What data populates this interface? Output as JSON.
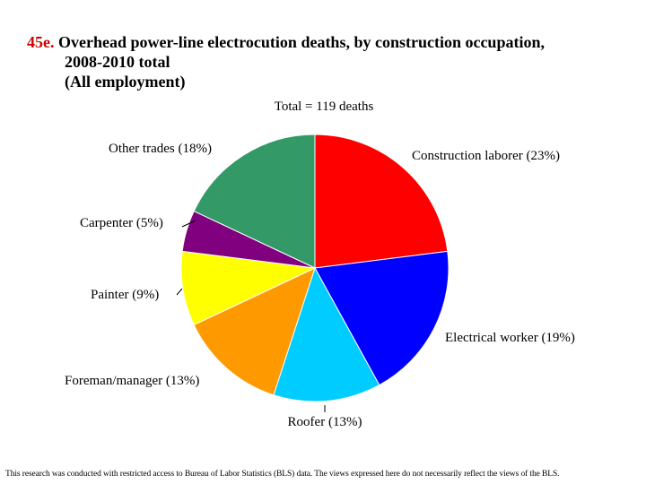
{
  "title": {
    "number": "45e.",
    "line1": "Overhead power-line electrocution deaths, by construction occupation,",
    "line2": "2008-2010 total",
    "line3": "(All employment)"
  },
  "chart_data": {
    "type": "pie",
    "subtitle": "Total = 119 deaths",
    "slices": [
      {
        "label": "Construction laborer (23%)",
        "value": 23,
        "color": "#ff0000"
      },
      {
        "label": "Electrical worker (19%)",
        "value": 19,
        "color": "#0000ff"
      },
      {
        "label": "Roofer (13%)",
        "value": 13,
        "color": "#00ccff"
      },
      {
        "label": "Foreman/manager (13%)",
        "value": 13,
        "color": "#ff9900"
      },
      {
        "label": "Painter (9%)",
        "value": 9,
        "color": "#ffff00"
      },
      {
        "label": "Carpenter (5%)",
        "value": 5,
        "color": "#800080"
      },
      {
        "label": "Other trades (18%)",
        "value": 18,
        "color": "#339966"
      }
    ]
  },
  "footnote": "This research was conducted with restricted access to Bureau of Labor Statistics (BLS) data.  The views expressed here do not necessarily reflect the views of the BLS."
}
